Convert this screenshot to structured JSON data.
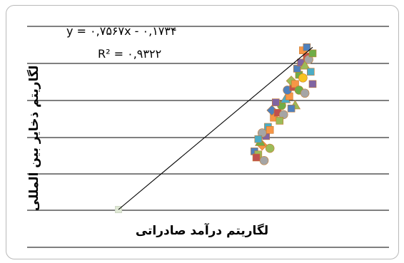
{
  "chart_data": {
    "type": "scatter",
    "title": "",
    "xlabel": "لگاریتم درآمد صادراتی",
    "ylabel": "لگاریتم ذخایر بین المللی",
    "trendline": {
      "equation": "y = ۰,۷۵۶۷x - ۰,۱۷۳۴",
      "r_squared": "R² = ۰,۹۳۲۲",
      "slope": 0.7567,
      "intercept": -0.1734
    },
    "grid": "horizontal",
    "legend": "none",
    "points": [
      {
        "x": 0.0,
        "y": 0.0,
        "marker": "square",
        "color": "#dfe8d5"
      },
      {
        "x": 0.7,
        "y": 0.95,
        "marker": "square",
        "color": "#4f81bd"
      },
      {
        "x": 0.72,
        "y": 0.9,
        "marker": "square",
        "color": "#9bbb59"
      },
      {
        "x": 0.74,
        "y": 1.05,
        "marker": "diamond",
        "color": "#f79646"
      },
      {
        "x": 0.71,
        "y": 0.85,
        "marker": "square",
        "color": "#c0504d"
      },
      {
        "x": 0.75,
        "y": 0.8,
        "marker": "circle",
        "color": "#a5a5a5"
      },
      {
        "x": 0.73,
        "y": 1.1,
        "marker": "triangle",
        "color": "#70ad47"
      },
      {
        "x": 0.76,
        "y": 1.2,
        "marker": "square",
        "color": "#8064a2"
      },
      {
        "x": 0.78,
        "y": 1.0,
        "marker": "circle",
        "color": "#9bbb59"
      },
      {
        "x": 0.77,
        "y": 1.35,
        "marker": "square",
        "color": "#4bacc6"
      },
      {
        "x": 0.8,
        "y": 1.5,
        "marker": "square",
        "color": "#f79646"
      },
      {
        "x": 0.79,
        "y": 1.62,
        "marker": "diamond",
        "color": "#4f81bd"
      },
      {
        "x": 0.82,
        "y": 1.58,
        "marker": "square",
        "color": "#c0504d"
      },
      {
        "x": 0.84,
        "y": 1.7,
        "marker": "circle",
        "color": "#70ad47"
      },
      {
        "x": 0.81,
        "y": 1.75,
        "marker": "square",
        "color": "#8064a2"
      },
      {
        "x": 0.85,
        "y": 1.55,
        "marker": "circle",
        "color": "#a5a5a5"
      },
      {
        "x": 0.83,
        "y": 1.45,
        "marker": "square",
        "color": "#9bbb59"
      },
      {
        "x": 0.86,
        "y": 1.8,
        "marker": "triangle",
        "color": "#4bacc6"
      },
      {
        "x": 0.88,
        "y": 1.85,
        "marker": "square",
        "color": "#f79646"
      },
      {
        "x": 0.87,
        "y": 1.95,
        "marker": "circle",
        "color": "#4f81bd"
      },
      {
        "x": 0.9,
        "y": 2.0,
        "marker": "square",
        "color": "#c0504d"
      },
      {
        "x": 0.89,
        "y": 2.1,
        "marker": "diamond",
        "color": "#9bbb59"
      },
      {
        "x": 0.91,
        "y": 2.05,
        "marker": "square",
        "color": "#f79646"
      },
      {
        "x": 0.93,
        "y": 2.2,
        "marker": "square",
        "color": "#70ad47"
      },
      {
        "x": 0.92,
        "y": 2.3,
        "marker": "square",
        "color": "#4f81bd"
      },
      {
        "x": 0.95,
        "y": 2.15,
        "marker": "circle",
        "color": "#f7c31f"
      },
      {
        "x": 0.94,
        "y": 2.4,
        "marker": "square",
        "color": "#8064a2"
      },
      {
        "x": 0.96,
        "y": 2.35,
        "marker": "triangle",
        "color": "#9bbb59"
      },
      {
        "x": 0.97,
        "y": 2.5,
        "marker": "square",
        "color": "#c0504d"
      },
      {
        "x": 0.98,
        "y": 2.45,
        "marker": "circle",
        "color": "#a5a5a5"
      },
      {
        "x": 0.99,
        "y": 2.25,
        "marker": "square",
        "color": "#4bacc6"
      },
      {
        "x": 1.0,
        "y": 2.55,
        "marker": "square",
        "color": "#70ad47"
      },
      {
        "x": 0.95,
        "y": 2.6,
        "marker": "square",
        "color": "#f79646"
      },
      {
        "x": 0.97,
        "y": 2.65,
        "marker": "square",
        "color": "#4f81bd"
      },
      {
        "x": 0.93,
        "y": 1.95,
        "marker": "circle",
        "color": "#70ad47"
      },
      {
        "x": 0.91,
        "y": 1.7,
        "marker": "triangle",
        "color": "#9bbb59"
      },
      {
        "x": 0.96,
        "y": 1.9,
        "marker": "circle",
        "color": "#a5a5a5"
      },
      {
        "x": 0.89,
        "y": 1.65,
        "marker": "square",
        "color": "#4f81bd"
      },
      {
        "x": 1.0,
        "y": 2.05,
        "marker": "square",
        "color": "#8064a2"
      },
      {
        "x": 0.74,
        "y": 1.25,
        "marker": "circle",
        "color": "#a5a5a5"
      },
      {
        "x": 0.78,
        "y": 1.3,
        "marker": "square",
        "color": "#f79646"
      },
      {
        "x": 0.72,
        "y": 1.15,
        "marker": "square",
        "color": "#4bacc6"
      }
    ]
  }
}
